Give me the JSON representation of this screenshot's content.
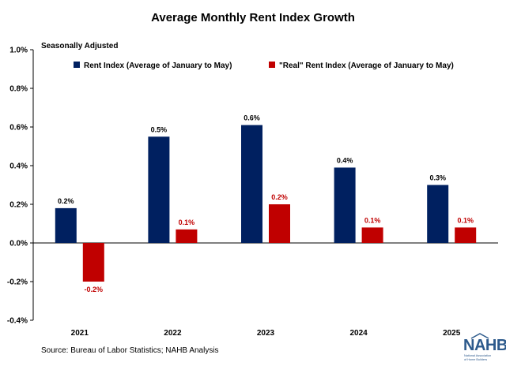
{
  "chart_data": {
    "type": "bar",
    "title": "Average Monthly Rent Index Growth",
    "subtitle": "Seasonally Adjusted",
    "categories": [
      "2021",
      "2022",
      "2023",
      "2024",
      "2025"
    ],
    "series": [
      {
        "name": "Rent Index (Average of January to May)",
        "color": "#002060",
        "values": [
          0.18,
          0.55,
          0.61,
          0.39,
          0.3
        ],
        "labels": [
          "0.2%",
          "0.5%",
          "0.6%",
          "0.4%",
          "0.3%"
        ],
        "label_color": "#000000"
      },
      {
        "name": "\"Real\" Rent Index (Average of January to May)",
        "color": "#C00000",
        "values": [
          -0.2,
          0.07,
          0.2,
          0.08,
          0.08
        ],
        "labels": [
          "-0.2%",
          "0.1%",
          "0.2%",
          "0.1%",
          "0.1%"
        ],
        "label_color": "#C00000"
      }
    ],
    "ylim": [
      -0.4,
      1.0
    ],
    "yticks": [
      -0.4,
      -0.2,
      0.0,
      0.2,
      0.4,
      0.6,
      0.8,
      1.0
    ],
    "ytick_labels": [
      "-0.4%",
      "-0.2%",
      "0.0%",
      "0.2%",
      "0.4%",
      "0.6%",
      "0.8%",
      "1.0%"
    ],
    "grid": false,
    "legend_position": "top"
  },
  "footer": {
    "source": "Source: Bureau of Labor Statistics; NAHB Analysis"
  },
  "logo": {
    "name": "NAHB",
    "tagline_line1": "National Association",
    "tagline_line2": "of Home Builders"
  }
}
